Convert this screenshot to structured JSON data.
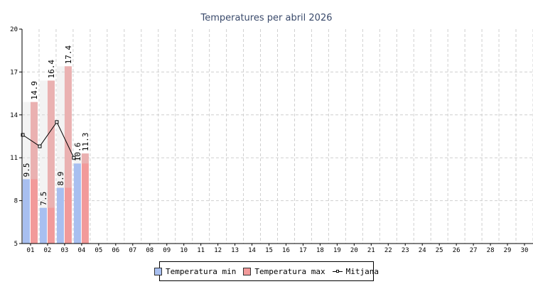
{
  "chart_data": {
    "type": "bar",
    "title": "Temperatures per abril 2026",
    "categories": [
      "01",
      "02",
      "03",
      "04",
      "05",
      "06",
      "07",
      "08",
      "09",
      "10",
      "11",
      "12",
      "13",
      "14",
      "15",
      "16",
      "17",
      "18",
      "19",
      "20",
      "21",
      "22",
      "23",
      "24",
      "25",
      "26",
      "27",
      "28",
      "29",
      "30"
    ],
    "series": [
      {
        "name": "Temperatura min",
        "type": "bar",
        "color": "#a8bff0",
        "values": [
          9.5,
          7.5,
          8.9,
          10.6,
          null,
          null,
          null,
          null,
          null,
          null,
          null,
          null,
          null,
          null,
          null,
          null,
          null,
          null,
          null,
          null,
          null,
          null,
          null,
          null,
          null,
          null,
          null,
          null,
          null,
          null
        ],
        "labels": [
          "9.5",
          "7.5",
          "8.9",
          "10.6"
        ]
      },
      {
        "name": "Temperatura max",
        "type": "bar",
        "color": "#f29a9a",
        "values": [
          14.9,
          16.4,
          17.4,
          11.3,
          null,
          null,
          null,
          null,
          null,
          null,
          null,
          null,
          null,
          null,
          null,
          null,
          null,
          null,
          null,
          null,
          null,
          null,
          null,
          null,
          null,
          null,
          null,
          null,
          null,
          null
        ],
        "labels": [
          "14.9",
          "16.4",
          "17.4",
          "11.3"
        ]
      },
      {
        "name": "Mitjana",
        "type": "line",
        "color": "#000000",
        "values": [
          12.6,
          11.8,
          13.5,
          11.0,
          null,
          null,
          null,
          null,
          null,
          null,
          null,
          null,
          null,
          null,
          null,
          null,
          null,
          null,
          null,
          null,
          null,
          null,
          null,
          null,
          null,
          null,
          null,
          null,
          null,
          null
        ]
      }
    ],
    "ylim": [
      5,
      20
    ],
    "yticks": [
      "5",
      "8",
      "11",
      "14",
      "17",
      "20"
    ],
    "grid": true,
    "legend": "bottom-center"
  }
}
